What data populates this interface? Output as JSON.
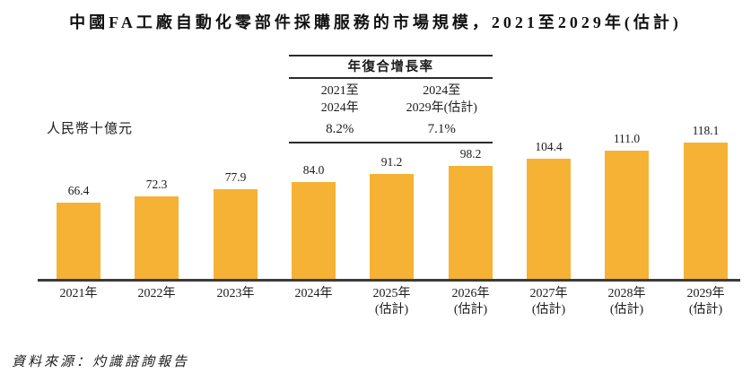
{
  "title": "中國FA工廠自動化零部件採購服務的市場規模，2021至2029年(估計)",
  "source": "資料來源：灼識諮詢報告",
  "chart_data": {
    "type": "bar",
    "title": "中國FA工廠自動化零部件採購服務的市場規模，2021至2029年(估計)",
    "unit_label": "人民幣十億元",
    "categories": [
      "2021年",
      "2022年",
      "2023年",
      "2024年",
      "2025年",
      "2026年",
      "2027年",
      "2028年",
      "2029年"
    ],
    "estimated_note": "(估計)",
    "estimated_indices": [
      4,
      5,
      6,
      7,
      8
    ],
    "values": [
      66.4,
      72.3,
      77.9,
      84.0,
      91.2,
      98.2,
      104.4,
      111.0,
      118.1
    ],
    "ylim": [
      0,
      130
    ],
    "grid": false,
    "legend": false,
    "bar_color": "#F5B235",
    "axis_color": "#3b3b3b",
    "cagr": {
      "header": "年復合增長率",
      "columns": [
        {
          "period_line1": "2021至",
          "period_line2": "2024年",
          "value": "8.2%"
        },
        {
          "period_line1": "2024至",
          "period_line2": "2029年(估計)",
          "value": "7.1%"
        }
      ]
    }
  }
}
